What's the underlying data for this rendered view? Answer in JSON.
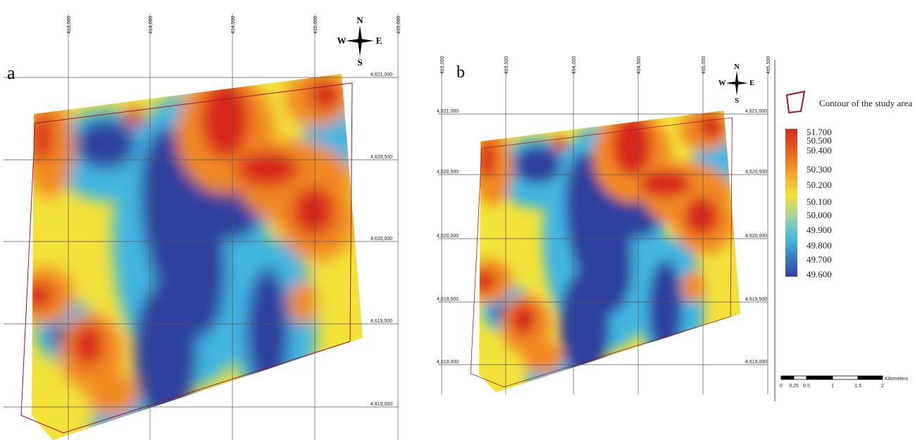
{
  "panels": [
    {
      "label": "a",
      "x_coords": [
        "413,500",
        "414,000",
        "414,500",
        "415,000",
        "415,500"
      ],
      "y_coords": [
        "4,621,000",
        "4,620,500",
        "4,620,000",
        "4,619,500",
        "4,619,000"
      ],
      "compass": {
        "n": "N",
        "s": "S",
        "e": "E",
        "w": "W"
      }
    },
    {
      "label": "b",
      "x_coords": [
        "413,000",
        "413,500",
        "414,000",
        "414,500",
        "415,000",
        "415,500"
      ],
      "y_coords_left": [
        "4,621,000",
        "4,620,500",
        "4,620,000",
        "4,619,500",
        "4,619,000"
      ],
      "y_coords_right": [
        "4,621,000",
        "4,620,500",
        "4,620,000",
        "4,619,500",
        "4,619,000"
      ],
      "compass": {
        "n": "N",
        "s": "S",
        "e": "E",
        "w": "W"
      }
    }
  ],
  "legend": {
    "contour_label": "Contour of the study area",
    "values": [
      "51.700",
      "50.500",
      "50.400",
      "50.300",
      "50.200",
      "50.100",
      "50.000",
      "49.900",
      "49.800",
      "49.700",
      "49.600"
    ]
  },
  "scale_bar": {
    "ticks": [
      "0",
      "0.25",
      "0.5",
      "1",
      "1.5",
      "2"
    ],
    "unit": "Kilometers"
  }
}
